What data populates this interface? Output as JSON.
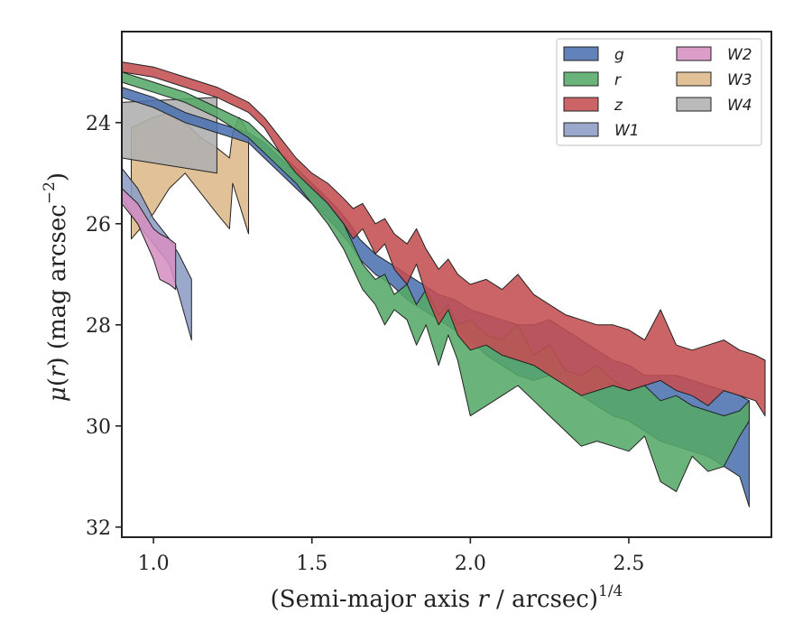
{
  "chart_data": {
    "type": "area",
    "title": "",
    "xlabel": "(Semi-major axis r / arcsec)",
    "xlabel_var": "r",
    "xlabel_sup": "1/4",
    "ylabel": "μ(r) (mag arcsec",
    "ylabel_var": "r",
    "ylabel_sup": "−2",
    "xlim": [
      0.9,
      2.95
    ],
    "ylim": [
      32.2,
      22.2
    ],
    "y_inverted": true,
    "xticks": [
      1.0,
      1.5,
      2.0,
      2.5
    ],
    "xtick_labels": [
      "1.0",
      "1.5",
      "2.0",
      "2.5"
    ],
    "yticks": [
      24,
      26,
      28,
      30,
      32
    ],
    "ytick_labels": [
      "24",
      "26",
      "28",
      "30",
      "32"
    ],
    "grid": false,
    "legend": {
      "location": "top-right",
      "columns": 2
    },
    "series": [
      {
        "name": "g",
        "color": "#4c72b0",
        "x": [
          0.9,
          1.0,
          1.1,
          1.2,
          1.3,
          1.35,
          1.4,
          1.45,
          1.5,
          1.55,
          1.58,
          1.62,
          1.65,
          1.7,
          1.75,
          1.8,
          1.85,
          1.9,
          1.95,
          2.0,
          2.05,
          2.1,
          2.15,
          2.2,
          2.25,
          2.3,
          2.35,
          2.4,
          2.45,
          2.5,
          2.55,
          2.6,
          2.65,
          2.7,
          2.75,
          2.8,
          2.85,
          2.88
        ],
        "y_upper": [
          23.3,
          23.5,
          23.8,
          24.0,
          24.2,
          24.4,
          24.7,
          25.0,
          25.2,
          25.5,
          25.7,
          26.0,
          26.3,
          26.6,
          26.8,
          27.0,
          27.2,
          27.4,
          27.5,
          27.7,
          27.8,
          27.9,
          28.0,
          28.0,
          27.9,
          28.1,
          28.3,
          28.5,
          28.7,
          28.8,
          29.0,
          29.0,
          29.0,
          29.1,
          29.2,
          29.3,
          29.4,
          29.5
        ],
        "y_lower": [
          23.5,
          23.7,
          24.0,
          24.2,
          24.4,
          24.7,
          25.0,
          25.3,
          25.6,
          25.9,
          26.1,
          26.4,
          26.7,
          27.0,
          27.2,
          27.5,
          27.7,
          27.9,
          28.1,
          28.3,
          28.6,
          28.8,
          29.0,
          29.1,
          29.0,
          29.2,
          29.4,
          29.6,
          29.8,
          29.9,
          30.1,
          30.3,
          30.4,
          30.5,
          30.6,
          30.8,
          31.0,
          31.6
        ]
      },
      {
        "name": "r",
        "color": "#55a868",
        "x": [
          0.9,
          1.0,
          1.1,
          1.2,
          1.3,
          1.35,
          1.4,
          1.45,
          1.5,
          1.55,
          1.6,
          1.63,
          1.66,
          1.7,
          1.73,
          1.76,
          1.8,
          1.83,
          1.86,
          1.9,
          1.93,
          1.96,
          2.0,
          2.05,
          2.1,
          2.15,
          2.2,
          2.25,
          2.3,
          2.35,
          2.4,
          2.45,
          2.5,
          2.55,
          2.6,
          2.65,
          2.7,
          2.75,
          2.8,
          2.85,
          2.88
        ],
        "y_upper": [
          23.0,
          23.2,
          23.4,
          23.7,
          24.0,
          24.3,
          24.6,
          24.9,
          25.2,
          25.6,
          26.0,
          26.4,
          26.8,
          27.1,
          27.0,
          27.4,
          27.2,
          27.6,
          27.3,
          27.8,
          27.6,
          28.0,
          27.9,
          28.2,
          28.3,
          28.0,
          28.6,
          28.4,
          28.9,
          29.0,
          28.8,
          29.1,
          29.3,
          29.2,
          29.5,
          29.4,
          29.6,
          29.7,
          29.8,
          29.7,
          29.5
        ],
        "y_lower": [
          23.2,
          23.4,
          23.6,
          23.9,
          24.3,
          24.6,
          24.9,
          25.2,
          25.6,
          26.0,
          26.5,
          26.9,
          27.3,
          27.6,
          28.0,
          27.7,
          27.9,
          28.4,
          28.0,
          28.8,
          28.2,
          28.7,
          29.8,
          29.6,
          29.4,
          29.2,
          29.5,
          29.8,
          30.1,
          30.4,
          30.3,
          30.4,
          30.5,
          30.2,
          31.1,
          31.3,
          30.6,
          30.9,
          30.8,
          30.2,
          29.9
        ]
      },
      {
        "name": "z",
        "color": "#c44e52",
        "x": [
          0.9,
          1.0,
          1.1,
          1.2,
          1.3,
          1.35,
          1.4,
          1.45,
          1.5,
          1.55,
          1.6,
          1.63,
          1.66,
          1.7,
          1.73,
          1.76,
          1.8,
          1.83,
          1.86,
          1.9,
          1.93,
          1.96,
          2.0,
          2.05,
          2.1,
          2.15,
          2.2,
          2.25,
          2.3,
          2.35,
          2.4,
          2.45,
          2.5,
          2.55,
          2.6,
          2.65,
          2.7,
          2.75,
          2.8,
          2.85,
          2.9,
          2.93
        ],
        "y_upper": [
          22.8,
          22.9,
          23.1,
          23.3,
          23.6,
          23.9,
          24.3,
          24.7,
          25.0,
          25.2,
          25.5,
          25.7,
          25.6,
          26.0,
          25.9,
          26.2,
          26.4,
          26.1,
          26.5,
          26.9,
          26.7,
          27.0,
          27.2,
          27.1,
          27.3,
          27.0,
          27.4,
          27.6,
          27.8,
          27.9,
          28.0,
          28.0,
          28.1,
          28.3,
          27.7,
          28.4,
          28.5,
          28.4,
          28.3,
          28.5,
          28.6,
          28.7
        ],
        "y_lower": [
          23.0,
          23.1,
          23.3,
          23.5,
          23.8,
          24.1,
          24.6,
          25.0,
          25.3,
          25.6,
          26.0,
          26.3,
          26.1,
          26.6,
          26.4,
          26.9,
          27.2,
          26.8,
          27.4,
          28.0,
          27.7,
          28.2,
          28.5,
          28.4,
          28.6,
          28.7,
          28.8,
          29.0,
          29.2,
          29.4,
          29.3,
          29.2,
          29.3,
          29.2,
          29.1,
          29.3,
          29.4,
          29.6,
          29.3,
          29.4,
          29.5,
          29.8
        ]
      },
      {
        "name": "W1",
        "color": "#8c9dc4",
        "x": [
          0.9,
          0.95,
          1.0,
          1.05,
          1.08,
          1.12
        ],
        "y_upper": [
          24.9,
          25.3,
          25.9,
          26.3,
          26.6,
          27.1
        ],
        "y_lower": [
          25.5,
          26.0,
          26.4,
          26.8,
          27.4,
          28.3
        ]
      },
      {
        "name": "W2",
        "color": "#d68fc1",
        "x": [
          0.9,
          0.95,
          1.0,
          1.02,
          1.05,
          1.07
        ],
        "y_upper": [
          25.3,
          25.6,
          26.1,
          26.2,
          26.3,
          26.4
        ],
        "y_lower": [
          25.6,
          26.0,
          26.7,
          27.1,
          27.2,
          27.3
        ]
      },
      {
        "name": "W3",
        "color": "#ddb98a",
        "x": [
          0.93,
          1.0,
          1.05,
          1.1,
          1.15,
          1.2,
          1.24,
          1.25,
          1.27,
          1.29,
          1.3
        ],
        "y_upper": [
          24.1,
          23.9,
          23.8,
          24.0,
          24.3,
          24.5,
          24.7,
          24.2,
          23.9,
          24.1,
          24.3
        ],
        "y_lower": [
          26.3,
          25.8,
          25.3,
          25.0,
          25.4,
          25.8,
          26.1,
          25.2,
          25.6,
          26.0,
          26.2
        ]
      },
      {
        "name": "W4",
        "color": "#b0b0b0",
        "x": [
          0.9,
          1.2
        ],
        "y_upper": [
          23.6,
          23.5
        ],
        "y_lower": [
          24.7,
          25.0
        ]
      }
    ]
  }
}
